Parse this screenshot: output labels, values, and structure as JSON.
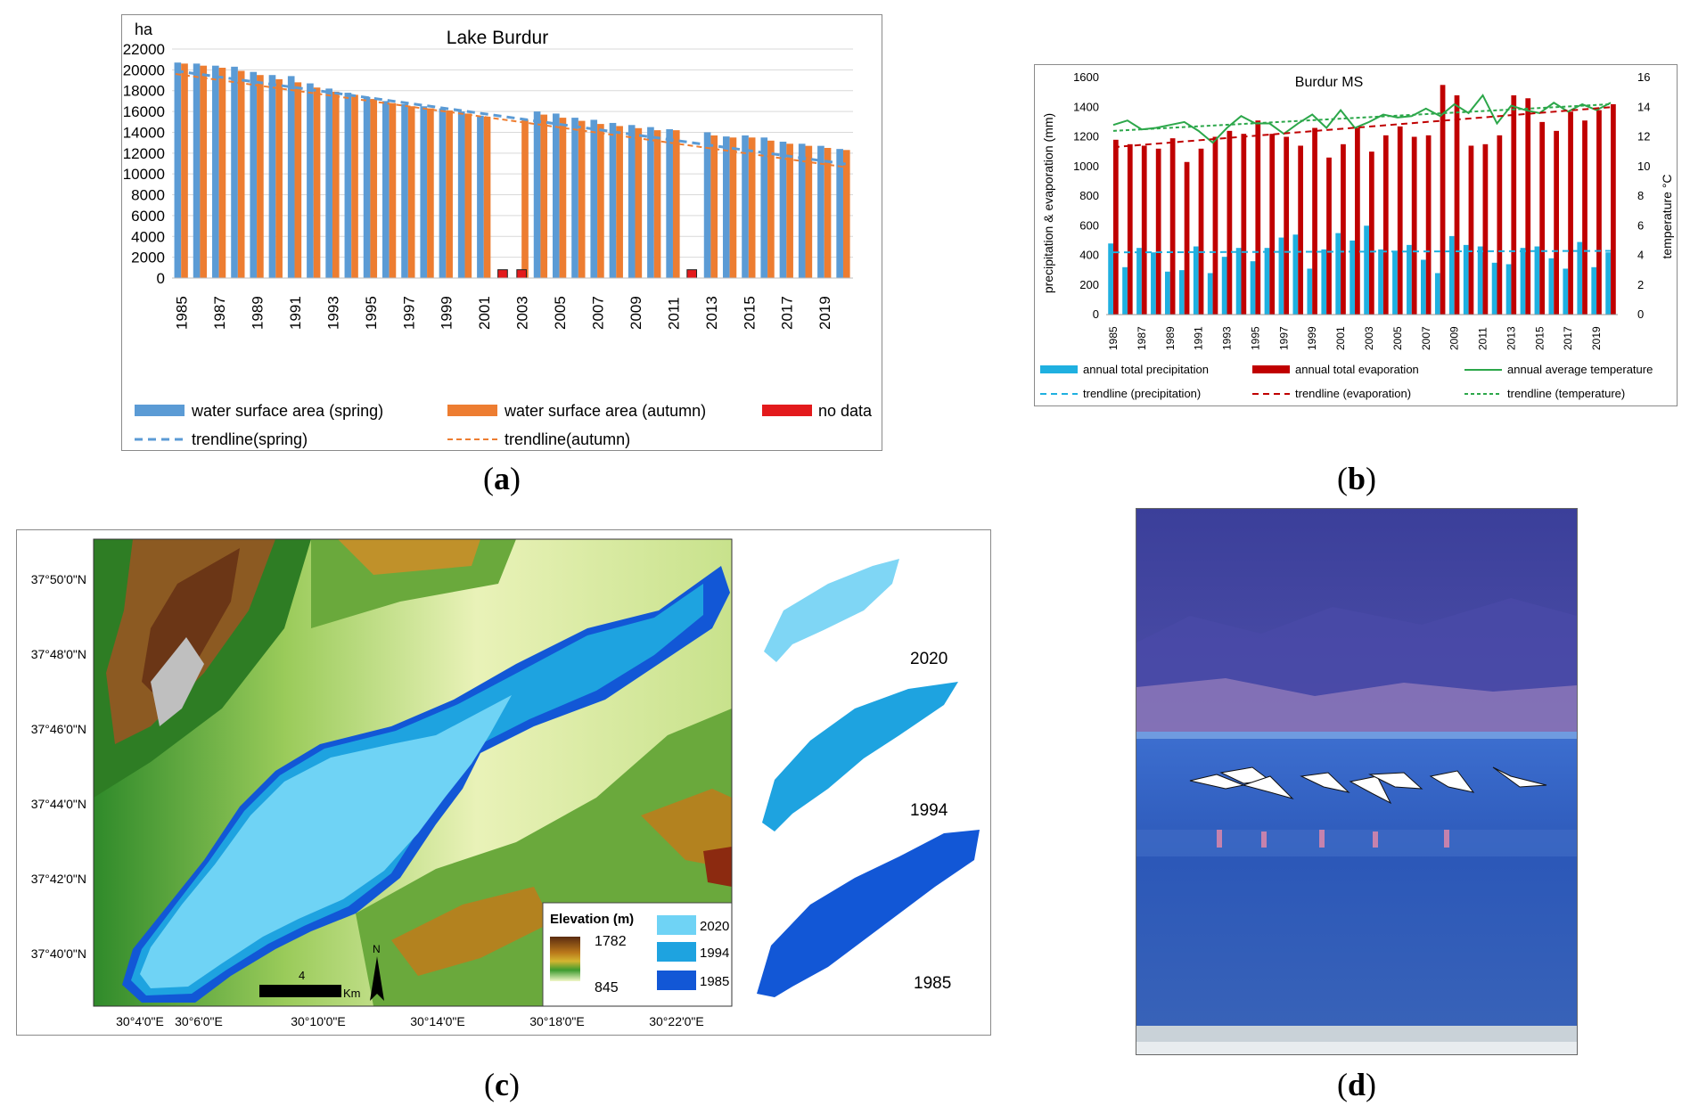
{
  "captions": {
    "a": "a",
    "b": "b",
    "c": "c",
    "d": "d"
  },
  "panel_a": {
    "unit_label": "ha",
    "chart_data": {
      "type": "bar",
      "title": "Lake Burdur",
      "ylabel": "ha",
      "ylim": [
        0,
        22000
      ],
      "yticks": [
        0,
        2000,
        4000,
        6000,
        8000,
        10000,
        12000,
        14000,
        16000,
        18000,
        20000,
        22000
      ],
      "categories": [
        1985,
        1986,
        1987,
        1988,
        1989,
        1990,
        1991,
        1992,
        1993,
        1994,
        1995,
        1996,
        1997,
        1998,
        1999,
        2000,
        2001,
        2002,
        2003,
        2004,
        2005,
        2006,
        2007,
        2008,
        2009,
        2010,
        2011,
        2012,
        2013,
        2014,
        2015,
        2016,
        2017,
        2018,
        2019,
        2020
      ],
      "xtick_labels": [
        "1985",
        "1987",
        "1989",
        "1991",
        "1993",
        "1995",
        "1997",
        "1999",
        "2001",
        "2003",
        "2005",
        "2007",
        "2009",
        "2011",
        "2013",
        "2015",
        "2017",
        "2019"
      ],
      "series": [
        {
          "name": "water surface area (spring)",
          "color": "#5b9bd5",
          "values": [
            20700,
            20600,
            20400,
            20300,
            19800,
            19500,
            19400,
            18700,
            18200,
            17800,
            17400,
            17000,
            16700,
            16500,
            16300,
            16000,
            15600,
            null,
            null,
            16000,
            15800,
            15400,
            15200,
            14900,
            14700,
            14500,
            14300,
            null,
            14000,
            13600,
            13700,
            13500,
            13100,
            12900,
            12700,
            12400
          ]
        },
        {
          "name": "water surface area (autumn)",
          "color": "#ed7d31",
          "values": [
            20600,
            20400,
            20200,
            19900,
            19500,
            19100,
            18800,
            18300,
            17900,
            17600,
            17200,
            16800,
            16500,
            16300,
            16100,
            15800,
            15500,
            null,
            15200,
            15700,
            15400,
            15100,
            14800,
            14600,
            14400,
            14200,
            14200,
            null,
            13700,
            13500,
            13500,
            13200,
            12900,
            12700,
            12500,
            12300
          ]
        },
        {
          "name": "no data",
          "color": "#e31a1c",
          "values": [
            null,
            null,
            null,
            null,
            null,
            null,
            null,
            null,
            null,
            null,
            null,
            null,
            null,
            null,
            null,
            null,
            null,
            800,
            800,
            null,
            null,
            null,
            null,
            null,
            null,
            null,
            null,
            800,
            null,
            null,
            null,
            null,
            null,
            null,
            null,
            null
          ]
        }
      ],
      "trendlines": [
        {
          "name": "trendline(spring)",
          "color": "#5b9bd5",
          "start": 19900,
          "end": 10900
        },
        {
          "name": "trendline(autumn)",
          "color": "#ed7d31",
          "start": 19600,
          "end": 10600
        }
      ],
      "legend": [
        "water surface area (spring)",
        "water surface area (autumn)",
        "no data",
        "trendline(spring)",
        "trendline(autumn)"
      ]
    }
  },
  "panel_b": {
    "chart_data": {
      "type": "bar",
      "title": "Burdur MS",
      "ylabel": "precipitation & evaporation (mm)",
      "y2label": "temperature °C",
      "ylim": [
        0,
        1600
      ],
      "y2lim": [
        0,
        16
      ],
      "yticks": [
        0,
        200,
        400,
        600,
        800,
        1000,
        1200,
        1400,
        1600
      ],
      "y2ticks": [
        0,
        2,
        4,
        6,
        8,
        10,
        12,
        14,
        16
      ],
      "categories": [
        1985,
        1986,
        1987,
        1988,
        1989,
        1990,
        1991,
        1992,
        1993,
        1994,
        1995,
        1996,
        1997,
        1998,
        1999,
        2000,
        2001,
        2002,
        2003,
        2004,
        2005,
        2006,
        2007,
        2008,
        2009,
        2010,
        2011,
        2012,
        2013,
        2014,
        2015,
        2016,
        2017,
        2018,
        2019,
        2020
      ],
      "xtick_labels": [
        "1985",
        "1987",
        "1989",
        "1991",
        "1993",
        "1995",
        "1997",
        "1999",
        "2001",
        "2003",
        "2005",
        "2007",
        "2009",
        "2011",
        "2013",
        "2015",
        "2017",
        "2019"
      ],
      "series": [
        {
          "name": "annual total precipitation",
          "color": "#1fb0e0",
          "values": [
            480,
            320,
            450,
            420,
            290,
            300,
            460,
            280,
            390,
            450,
            360,
            450,
            520,
            540,
            310,
            440,
            550,
            500,
            600,
            440,
            430,
            470,
            370,
            280,
            530,
            470,
            460,
            350,
            340,
            450,
            460,
            380,
            310,
            490,
            320,
            420
          ]
        },
        {
          "name": "annual total evaporation",
          "color": "#c00000",
          "values": [
            1180,
            1150,
            1140,
            1120,
            1190,
            1030,
            1120,
            1200,
            1240,
            1220,
            1310,
            1220,
            1200,
            1140,
            1260,
            1060,
            1150,
            1260,
            1100,
            1210,
            1270,
            1200,
            1210,
            1550,
            1480,
            1140,
            1150,
            1210,
            1480,
            1460,
            1300,
            1240,
            1370,
            1310,
            1380,
            1420
          ]
        },
        {
          "name": "annual average temperature",
          "color": "#2ca74a",
          "values": [
            12.8,
            13.1,
            12.5,
            12.6,
            12.8,
            13.0,
            12.4,
            11.6,
            12.6,
            13.4,
            12.9,
            12.9,
            12.2,
            12.9,
            13.5,
            12.6,
            13.8,
            12.6,
            13.0,
            13.5,
            13.3,
            13.4,
            13.9,
            13.4,
            14.2,
            13.6,
            14.8,
            12.9,
            14.1,
            13.8,
            13.6,
            14.3,
            13.7,
            14.2,
            13.8,
            14.3
          ]
        }
      ],
      "trendlines": [
        {
          "name": "trendline (precipitation)",
          "color": "#1fb0e0",
          "start": 420,
          "end": 430,
          "axis": "left"
        },
        {
          "name": "trendline (evaporation)",
          "color": "#c00000",
          "start": 1130,
          "end": 1400,
          "axis": "left"
        },
        {
          "name": "trendline (temperature)",
          "color": "#2ca74a",
          "start": 12.4,
          "end": 14.2,
          "axis": "right"
        }
      ],
      "legend": [
        "annual total precipitation",
        "annual total evaporation",
        "annual average temperature",
        "trendline (precipitation)",
        "trendline (evaporation)",
        "trendline (temperature)"
      ]
    }
  },
  "panel_c": {
    "lat_labels": [
      "37°50'0\"N",
      "37°48'0\"N",
      "37°46'0\"N",
      "37°44'0\"N",
      "37°42'0\"N",
      "37°40'0\"N"
    ],
    "lon_labels": [
      "30°4'0\"E",
      "30°6'0\"E",
      "30°10'0\"E",
      "30°14'0\"E",
      "30°18'0\"E",
      "30°22'0\"E"
    ],
    "legend": {
      "title": "Elevation (m)",
      "max": "1782",
      "min": "845",
      "years": [
        "2020",
        "1994",
        "1985"
      ],
      "colors": {
        "2020": "#6fd3f5",
        "1994": "#1ea3e0",
        "1985": "#1257d6"
      }
    },
    "scale_value": "4",
    "scale_unit": "Km",
    "north_label": "N",
    "shoreline_years": [
      "2020",
      "1994",
      "1985"
    ]
  },
  "panel_d": {
    "subject": "flamingos"
  }
}
